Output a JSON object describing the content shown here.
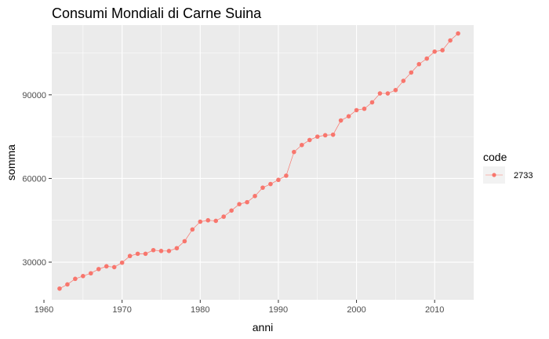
{
  "chart_data": {
    "type": "line",
    "title": "Consumi Mondiali di Carne Suina",
    "xlabel": "anni",
    "ylabel": "somma",
    "xlim": [
      1961,
      2015
    ],
    "ylim": [
      16500,
      115000
    ],
    "x_ticks": [
      1960,
      1970,
      1980,
      1990,
      2000,
      2010
    ],
    "x_tick_labels": [
      "1960",
      "1970",
      "1980",
      "1990",
      "2000",
      "2010"
    ],
    "y_ticks": [
      30000,
      60000,
      90000
    ],
    "y_tick_labels": [
      "30000",
      "60000",
      "90000"
    ],
    "grid": true,
    "legend": {
      "title": "code",
      "position": "right"
    },
    "series": [
      {
        "name": "2733",
        "color": "#F8766D",
        "x": [
          1962,
          1963,
          1964,
          1965,
          1966,
          1967,
          1968,
          1969,
          1970,
          1971,
          1972,
          1973,
          1974,
          1975,
          1976,
          1977,
          1978,
          1979,
          1980,
          1981,
          1982,
          1983,
          1984,
          1985,
          1986,
          1987,
          1988,
          1989,
          1990,
          1991,
          1992,
          1993,
          1994,
          1995,
          1996,
          1997,
          1998,
          1999,
          2000,
          2001,
          2002,
          2003,
          2004,
          2005,
          2006,
          2007,
          2008,
          2009,
          2010,
          2011,
          2012,
          2013
        ],
        "y": [
          20500,
          22000,
          24000,
          25000,
          26000,
          27500,
          28500,
          28200,
          29800,
          32200,
          33000,
          33000,
          34300,
          34000,
          34000,
          35000,
          37500,
          41700,
          44500,
          45000,
          44800,
          46300,
          48500,
          50800,
          51500,
          53700,
          56700,
          58000,
          59500,
          61000,
          69500,
          72000,
          73800,
          75000,
          75500,
          75700,
          80800,
          82300,
          84500,
          85000,
          87300,
          90500,
          90500,
          91700,
          95000,
          98000,
          101000,
          103000,
          105500,
          106000,
          109500,
          112000
        ]
      }
    ]
  }
}
